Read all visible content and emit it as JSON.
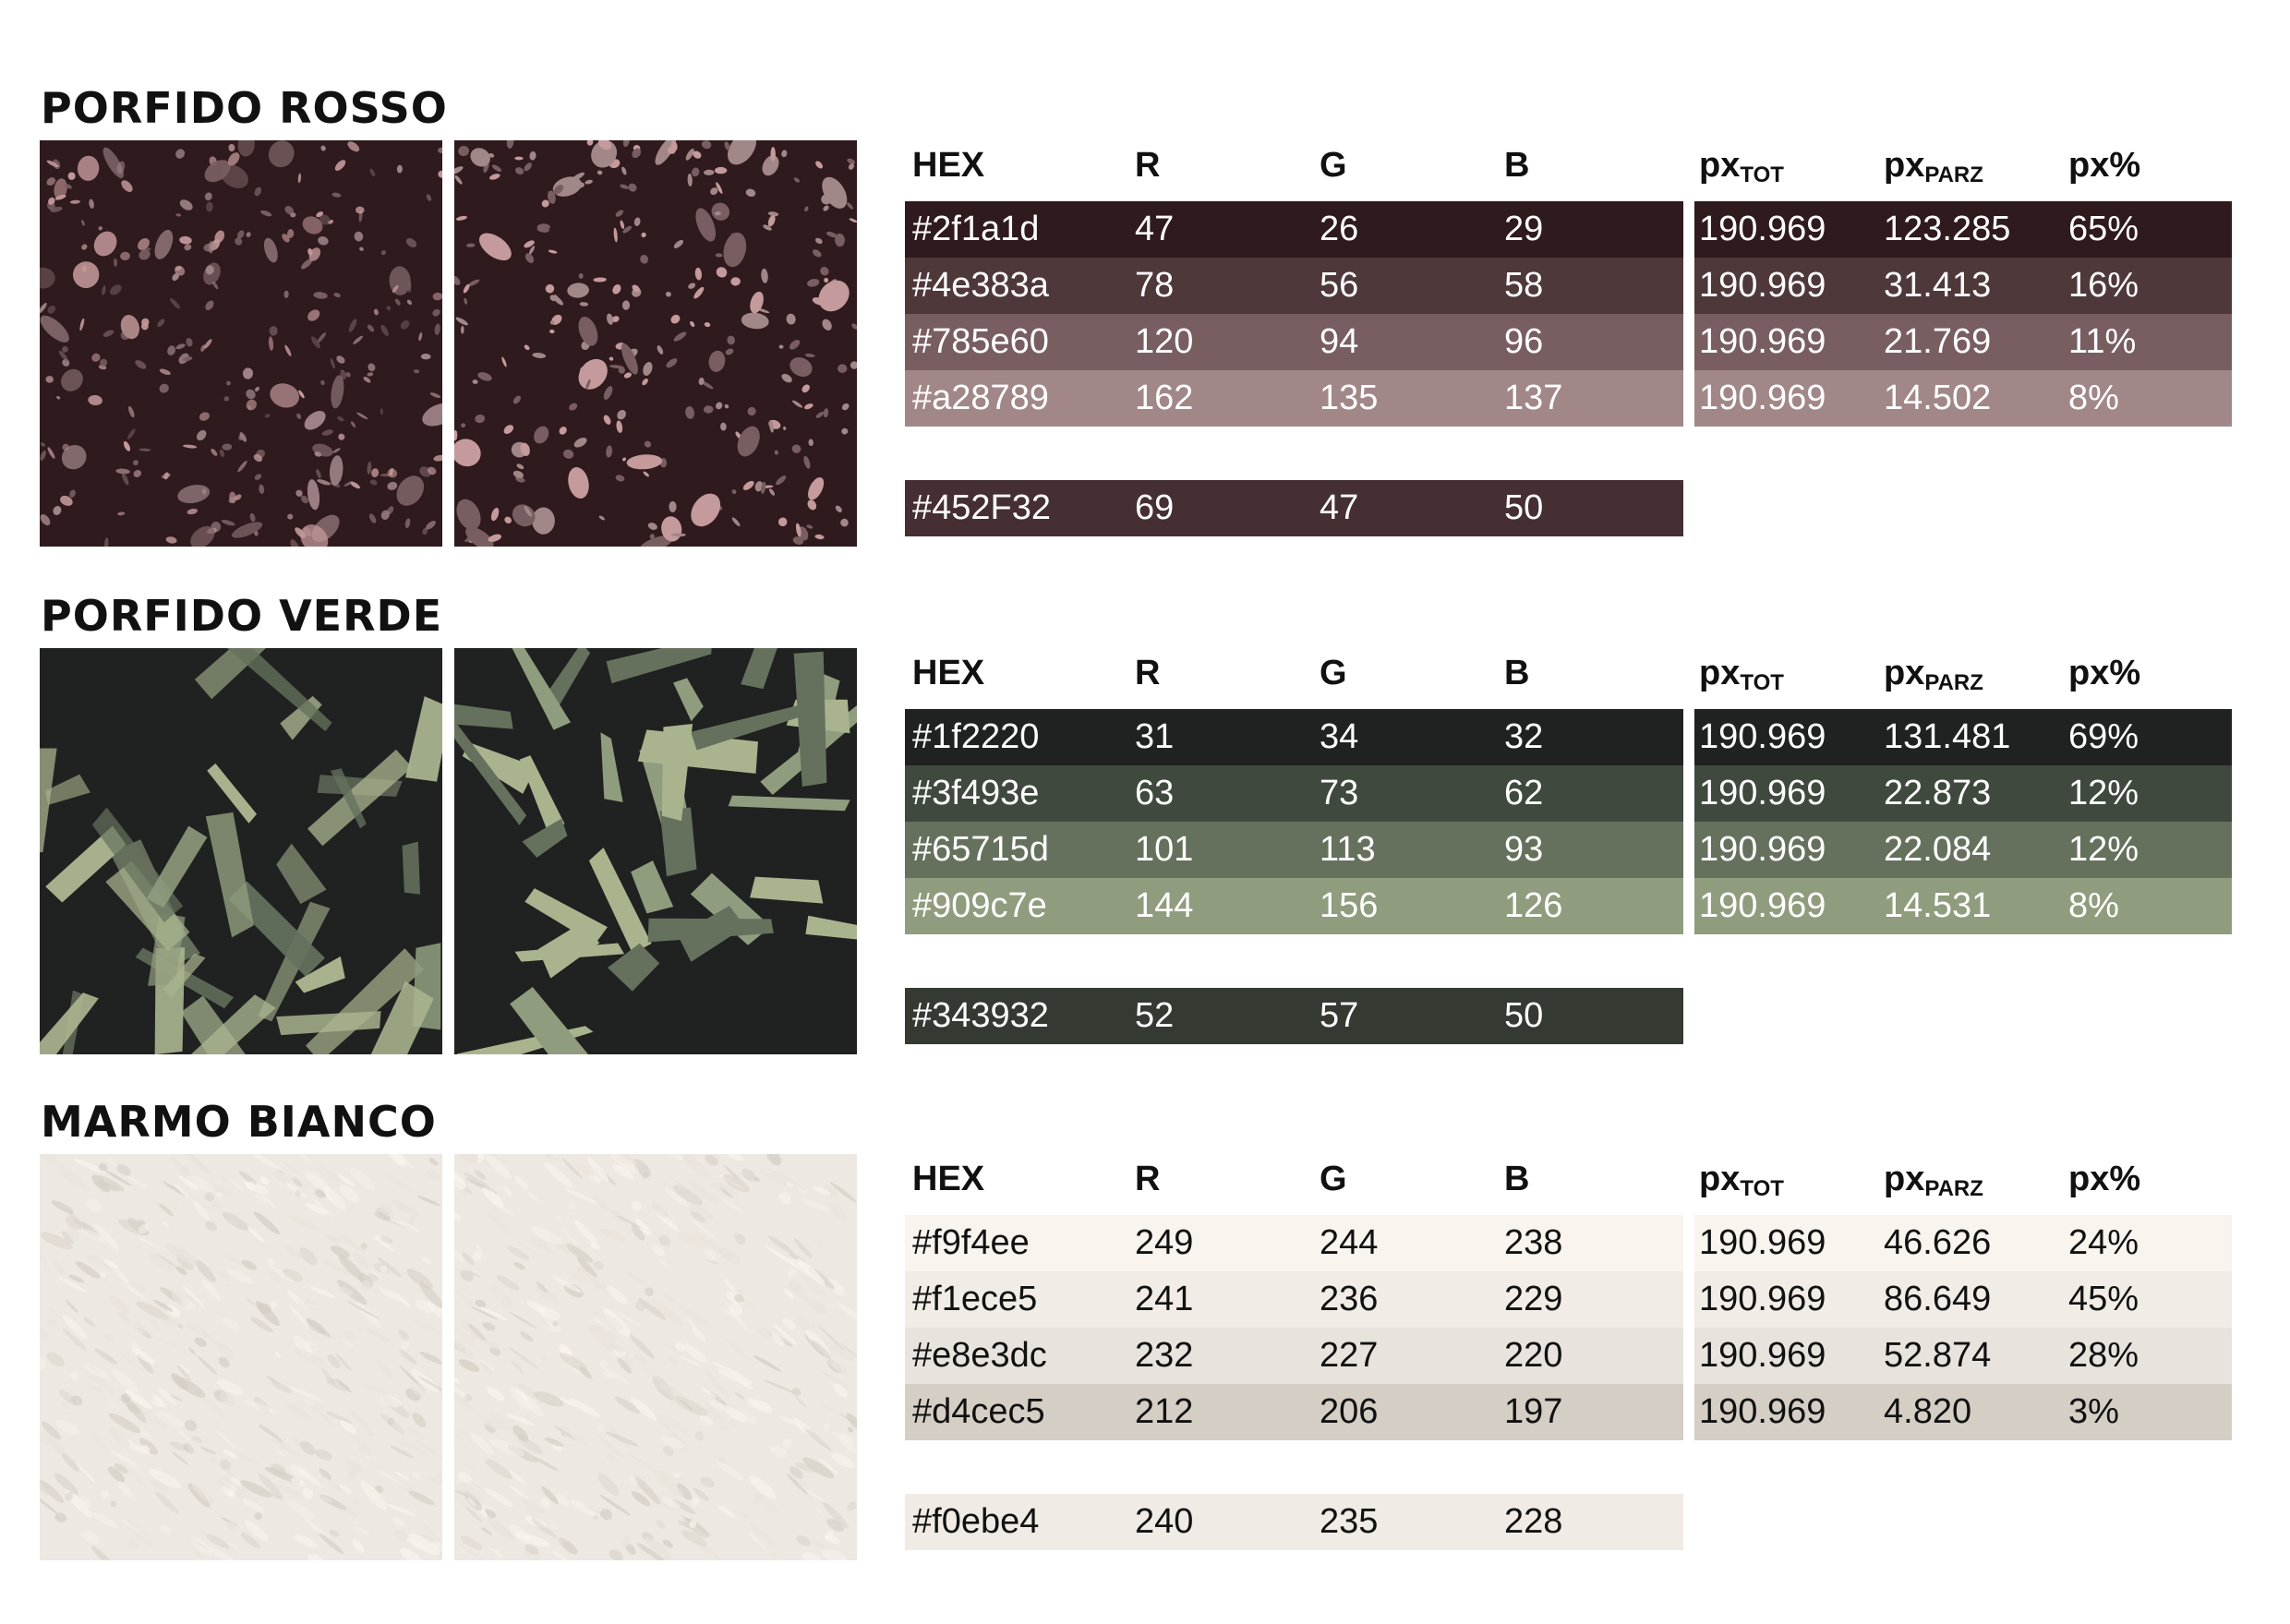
{
  "headers": {
    "hex": "HEX",
    "r": "R",
    "g": "G",
    "b": "B",
    "px": "px",
    "tot": "TOT",
    "parz": "PARZ",
    "pct": "px%"
  },
  "sections": [
    {
      "title": "PORFIDO ROSSO",
      "image_colors": {
        "base": "#2f1a1d",
        "spots": [
          "#785e60",
          "#a28789",
          "#c49a9c"
        ]
      },
      "rows": [
        {
          "hex": "#2f1a1d",
          "r": "47",
          "g": "26",
          "b": "29",
          "tot": "190.969",
          "parz": "123.285",
          "pct": "65%",
          "bg": "#2f1a1d",
          "fg": "#ffffff"
        },
        {
          "hex": "#4e383a",
          "r": "78",
          "g": "56",
          "b": "58",
          "tot": "190.969",
          "parz": "31.413",
          "pct": "16%",
          "bg": "#4e383a",
          "fg": "#ffffff"
        },
        {
          "hex": "#785e60",
          "r": "120",
          "g": "94",
          "b": "96",
          "tot": "190.969",
          "parz": "21.769",
          "pct": "11%",
          "bg": "#785e60",
          "fg": "#ffffff"
        },
        {
          "hex": "#a28789",
          "r": "162",
          "g": "135",
          "b": "137",
          "tot": "190.969",
          "parz": "14.502",
          "pct": "8%",
          "bg": "#a28789",
          "fg": "#ffffff"
        }
      ],
      "avg": {
        "hex": "#452F32",
        "r": "69",
        "g": "47",
        "b": "50",
        "bg": "#452f32",
        "fg": "#ffffff"
      }
    },
    {
      "title": "PORFIDO VERDE",
      "image_colors": {
        "base": "#1f2220",
        "spots": [
          "#65715d",
          "#909c7e",
          "#a9b48f"
        ]
      },
      "rows": [
        {
          "hex": "#1f2220",
          "r": "31",
          "g": "34",
          "b": "32",
          "tot": "190.969",
          "parz": "131.481",
          "pct": "69%",
          "bg": "#1f2220",
          "fg": "#ffffff"
        },
        {
          "hex": "#3f493e",
          "r": "63",
          "g": "73",
          "b": "62",
          "tot": "190.969",
          "parz": "22.873",
          "pct": "12%",
          "bg": "#3f493e",
          "fg": "#ffffff"
        },
        {
          "hex": "#65715d",
          "r": "101",
          "g": "113",
          "b": "93",
          "tot": "190.969",
          "parz": "22.084",
          "pct": "12%",
          "bg": "#65715d",
          "fg": "#ffffff"
        },
        {
          "hex": "#909c7e",
          "r": "144",
          "g": "156",
          "b": "126",
          "tot": "190.969",
          "parz": "14.531",
          "pct": "8%",
          "bg": "#909c7e",
          "fg": "#ffffff"
        }
      ],
      "avg": {
        "hex": "#343932",
        "r": "52",
        "g": "57",
        "b": "50",
        "bg": "#343932",
        "fg": "#ffffff"
      }
    },
    {
      "title": "MARMO BIANCO",
      "image_colors": {
        "base": "#ede8e1",
        "spots": [
          "#f9f4ee",
          "#e8e3dc",
          "#d4cec5"
        ]
      },
      "rows": [
        {
          "hex": "#f9f4ee",
          "r": "249",
          "g": "244",
          "b": "238",
          "tot": "190.969",
          "parz": "46.626",
          "pct": "24%",
          "bg": "#f9f4ee",
          "fg": "#111111"
        },
        {
          "hex": "#f1ece5",
          "r": "241",
          "g": "236",
          "b": "229",
          "tot": "190.969",
          "parz": "86.649",
          "pct": "45%",
          "bg": "#f1ece5",
          "fg": "#111111"
        },
        {
          "hex": "#e8e3dc",
          "r": "232",
          "g": "227",
          "b": "220",
          "tot": "190.969",
          "parz": "52.874",
          "pct": "28%",
          "bg": "#e8e3dc",
          "fg": "#111111"
        },
        {
          "hex": "#d4cec5",
          "r": "212",
          "g": "206",
          "b": "197",
          "tot": "190.969",
          "parz": "4.820",
          "pct": "3%",
          "bg": "#d4cec5",
          "fg": "#111111"
        }
      ],
      "avg": {
        "hex": "#f0ebe4",
        "r": "240",
        "g": "235",
        "b": "228",
        "bg": "#f0ebe4",
        "fg": "#111111"
      }
    }
  ]
}
